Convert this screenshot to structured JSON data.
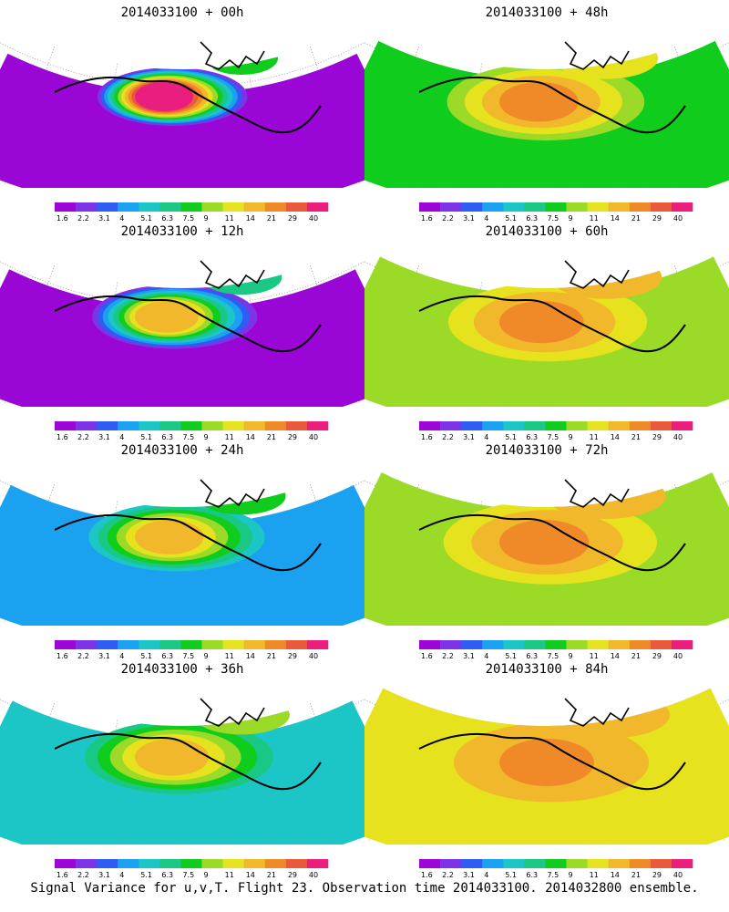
{
  "footer_caption": "Signal Variance for u,v,T. Flight 23. Observation time 2014033100. 2014032800 ensemble.",
  "legend": {
    "ticks": [
      "1.6",
      "2.2",
      "3.1",
      "4",
      "5.1",
      "6.3",
      "7.5",
      "9",
      "11",
      "14",
      "21",
      "29",
      "40"
    ],
    "colors": [
      "#9a06d6",
      "#7c34e6",
      "#2f5cf2",
      "#1aa2f0",
      "#1cc6c6",
      "#18c884",
      "#10cc1c",
      "#9cda28",
      "#e6e21e",
      "#f0b82a",
      "#f08a28",
      "#e85a3a",
      "#ea1e7e"
    ]
  },
  "chart_data": [
    {
      "type": "heatmap",
      "title": "2014033100 + 00h",
      "forecast_hour": 0,
      "dominant_level": "1.6-4",
      "peak_level": "40"
    },
    {
      "type": "heatmap",
      "title": "2014033100 + 12h",
      "forecast_hour": 12,
      "dominant_level": "1.6-5.1",
      "peak_level": "14"
    },
    {
      "type": "heatmap",
      "title": "2014033100 + 24h",
      "forecast_hour": 24,
      "dominant_level": "4-7.5",
      "peak_level": "14"
    },
    {
      "type": "heatmap",
      "title": "2014033100 + 36h",
      "forecast_hour": 36,
      "dominant_level": "5.1-9",
      "peak_level": "14"
    },
    {
      "type": "heatmap",
      "title": "2014033100 + 48h",
      "forecast_hour": 48,
      "dominant_level": "7.5-11",
      "peak_level": "21"
    },
    {
      "type": "heatmap",
      "title": "2014033100 + 60h",
      "forecast_hour": 60,
      "dominant_level": "9-14",
      "peak_level": "21"
    },
    {
      "type": "heatmap",
      "title": "2014033100 + 72h",
      "forecast_hour": 72,
      "dominant_level": "9-14",
      "peak_level": "21"
    },
    {
      "type": "heatmap",
      "title": "2014033100 + 84h",
      "forecast_hour": 84,
      "dominant_level": "11-21",
      "peak_level": "21"
    }
  ]
}
